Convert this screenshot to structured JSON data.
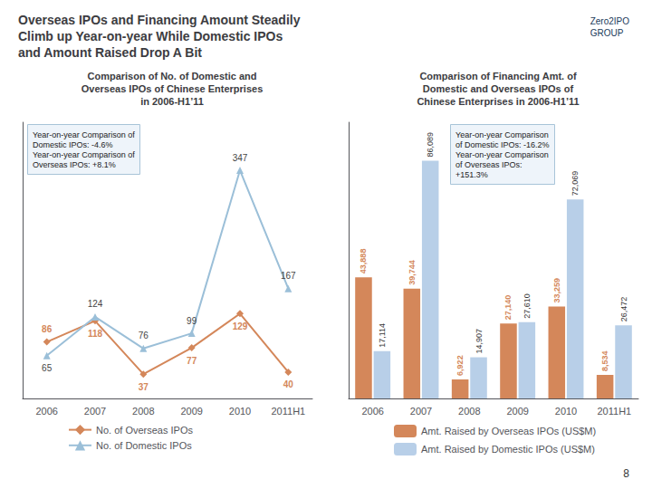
{
  "title": "Overseas IPOs and Financing Amount Steadily\nClimb up Year-on-year While Domestic IPOs\nand Amount Raised Drop A Bit",
  "annotations": [
    "Zero2IPO\nGROUP",
    "8"
  ],
  "chart_data": [
    {
      "type": "line",
      "title": "Comparison of No. of Domestic and\nOverseas IPOs of Chinese Enterprises\nin 2006-H1’11",
      "categories": [
        "2006",
        "2007",
        "2008",
        "2009",
        "2010",
        "2011H1"
      ],
      "series": [
        {
          "name": "No. of Overseas IPOs",
          "color": "#d4875a",
          "marker": "diamond",
          "values": [
            86,
            118,
            37,
            77,
            129,
            40
          ]
        },
        {
          "name": "No. of Domestic IPOs",
          "color": "#9bbfd8",
          "marker": "triangle",
          "values": [
            65,
            124,
            76,
            99,
            347,
            167
          ]
        }
      ],
      "ylim": [
        0,
        420
      ],
      "tick_labels": "x",
      "grid": false,
      "legend": "bottom",
      "data_labels": true,
      "annotations": [
        "Year-on-year Comparison of\nDomestic IPOs: -4.6%\nYear-on-year Comparison of\nOverseas IPOs: +8.1%"
      ]
    },
    {
      "type": "bar",
      "title": "Comparison of Financing Amt. of\nDomestic and Overseas IPOs of\nChinese Enterprises in 2006-H1’11",
      "categories": [
        "2006",
        "2007",
        "2008",
        "2009",
        "2010",
        "2011H1"
      ],
      "series": [
        {
          "name": "Amt. Raised by Overseas IPOs (US$M)",
          "color": "#d4875a",
          "values": [
            43888,
            39744,
            6922,
            27140,
            33259,
            8534
          ],
          "value_labels": [
            "43,888",
            "39,744",
            "6,922",
            "27,140",
            "33,259",
            "8,534"
          ]
        },
        {
          "name": "Amt. Raised by Domestic IPOs (US$M)",
          "color": "#b8cfe8",
          "values": [
            17114,
            86089,
            14907,
            27610,
            72069,
            26472
          ],
          "value_labels": [
            "17,114",
            "86,089",
            "14,907",
            "27,610",
            "72,069",
            "26,472"
          ]
        }
      ],
      "ylim": [
        0,
        100000
      ],
      "tick_labels": "x",
      "grid": false,
      "legend": "bottom",
      "data_labels": true,
      "annotations": [
        "Year-on-year Comparison\nof Domestic IPOs: -16.2%\nYear-on-year Comparison\nof Overseas IPOs:\n+151.3%"
      ]
    }
  ]
}
